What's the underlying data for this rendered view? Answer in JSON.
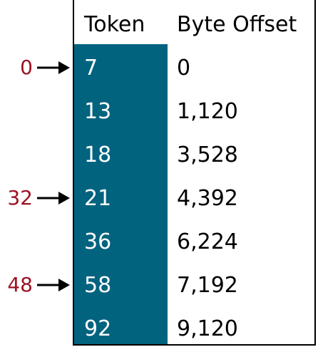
{
  "colors": {
    "token_column": "#02637f",
    "pointer_label": "#9c1324",
    "arrow": "#000000"
  },
  "header": {
    "token": "Token",
    "byte_offset": "Byte Offset"
  },
  "rows": [
    {
      "token": "7",
      "offset": "0"
    },
    {
      "token": "13",
      "offset": "1,120"
    },
    {
      "token": "18",
      "offset": "3,528"
    },
    {
      "token": "21",
      "offset": "4,392"
    },
    {
      "token": "36",
      "offset": "6,224"
    },
    {
      "token": "58",
      "offset": "7,192"
    },
    {
      "token": "92",
      "offset": "9,120"
    }
  ],
  "pointers": [
    {
      "label": "0",
      "row": 0
    },
    {
      "label": "32",
      "row": 3
    },
    {
      "label": "48",
      "row": 5
    }
  ]
}
